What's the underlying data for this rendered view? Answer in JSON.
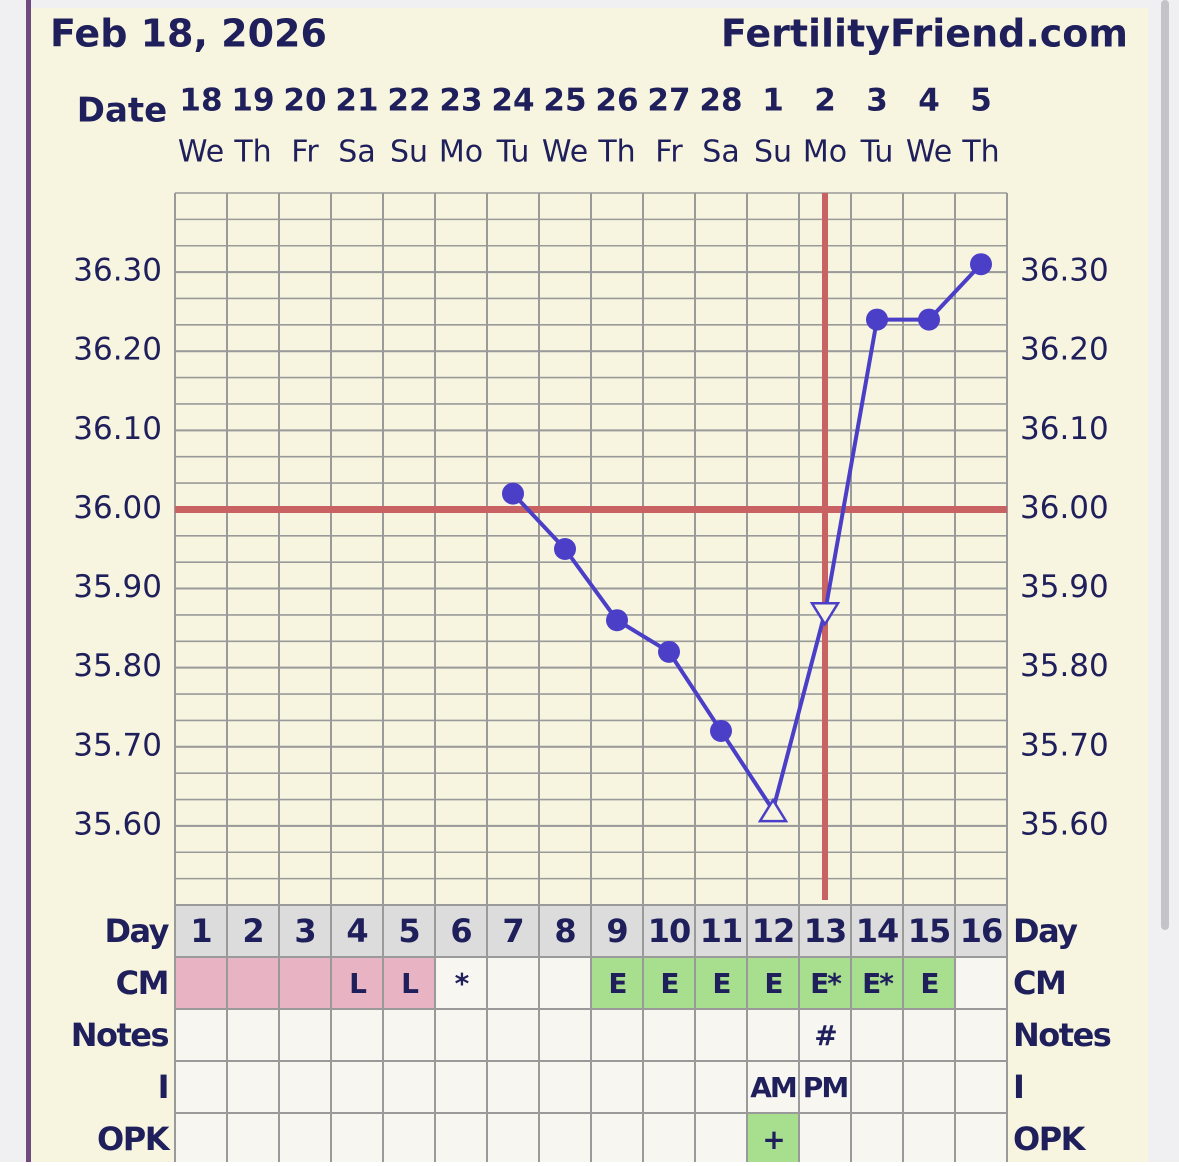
{
  "header": {
    "date": "Feb 18, 2026",
    "site": "FertilityFriend.com"
  },
  "chart_data": {
    "type": "line",
    "x_label": "Date",
    "categories": [
      "18",
      "19",
      "20",
      "21",
      "22",
      "23",
      "24",
      "25",
      "26",
      "27",
      "28",
      "1",
      "2",
      "3",
      "4",
      "5"
    ],
    "weekdays": [
      "We",
      "Th",
      "Fr",
      "Sa",
      "Su",
      "Mo",
      "Tu",
      "We",
      "Th",
      "Fr",
      "Sa",
      "Su",
      "Mo",
      "Tu",
      "We",
      "Th"
    ],
    "series": [
      {
        "color": "#4a3fc6",
        "values": [
          null,
          null,
          null,
          null,
          null,
          null,
          36.02,
          35.95,
          35.86,
          35.82,
          35.72,
          35.62,
          35.87,
          36.24,
          36.24,
          36.31
        ],
        "markers": [
          null,
          null,
          null,
          null,
          null,
          null,
          "circle",
          "circle",
          "circle",
          "circle",
          "circle",
          "triangle-up",
          "triangle-down",
          "circle",
          "circle",
          "circle"
        ]
      }
    ],
    "ylim": [
      35.5,
      36.4
    ],
    "yticks": [
      {
        "value": 35.6,
        "label": "35.60"
      },
      {
        "value": 35.7,
        "label": "35.70"
      },
      {
        "value": 35.8,
        "label": "35.80"
      },
      {
        "value": 35.9,
        "label": "35.90"
      },
      {
        "value": 36.0,
        "label": "36.00"
      },
      {
        "value": 36.1,
        "label": "36.10"
      },
      {
        "value": 36.2,
        "label": "36.20"
      },
      {
        "value": 36.3,
        "label": "36.30"
      }
    ],
    "grid": true,
    "coverline": 36.0,
    "ovulation_cycle_day": 13,
    "line_color": "#c96262"
  },
  "table": {
    "rows": [
      {
        "label": "Day",
        "cells": [
          1,
          2,
          3,
          4,
          5,
          6,
          7,
          8,
          9,
          10,
          11,
          12,
          13,
          14,
          15,
          16
        ],
        "colors": [
          "#dcdcdc",
          "#dcdcdc",
          "#dcdcdc",
          "#dcdcdc",
          "#dcdcdc",
          "#dcdcdc",
          "#dcdcdc",
          "#dcdcdc",
          "#dcdcdc",
          "#dcdcdc",
          "#dcdcdc",
          "#dcdcdc",
          "#dcdcdc",
          "#dcdcdc",
          "#dcdcdc",
          "#dcdcdc"
        ]
      },
      {
        "label": "CM",
        "cells": [
          null,
          null,
          null,
          "L",
          "L",
          "*",
          null,
          null,
          "E",
          "E",
          "E",
          "E",
          "E*",
          "E*",
          "E",
          null
        ],
        "colors": [
          "#e8b4c3",
          "#e8b4c3",
          "#e8b4c3",
          "#e8b4c3",
          "#e8b4c3",
          null,
          null,
          null,
          "#a8df8e",
          "#a8df8e",
          "#a8df8e",
          "#a8df8e",
          "#a8df8e",
          "#a8df8e",
          "#a8df8e",
          null
        ]
      },
      {
        "label": "Notes",
        "cells": [
          null,
          null,
          null,
          null,
          null,
          null,
          null,
          null,
          null,
          null,
          null,
          null,
          "#",
          null,
          null,
          null
        ],
        "colors": [
          null,
          null,
          null,
          null,
          null,
          null,
          null,
          null,
          null,
          null,
          null,
          null,
          null,
          null,
          null,
          null
        ]
      },
      {
        "label": "I",
        "cells": [
          null,
          null,
          null,
          null,
          null,
          null,
          null,
          null,
          null,
          null,
          null,
          "AM",
          "PM",
          null,
          null,
          null
        ],
        "colors": [
          null,
          null,
          null,
          null,
          null,
          null,
          null,
          null,
          null,
          null,
          null,
          null,
          null,
          null,
          null,
          null
        ]
      },
      {
        "label": "OPK",
        "cells": [
          null,
          null,
          null,
          null,
          null,
          null,
          null,
          null,
          null,
          null,
          null,
          "+",
          null,
          null,
          null,
          null
        ],
        "colors": [
          null,
          null,
          null,
          null,
          null,
          null,
          null,
          null,
          null,
          null,
          null,
          "#a8df8e",
          null,
          null,
          null,
          null
        ]
      }
    ]
  }
}
